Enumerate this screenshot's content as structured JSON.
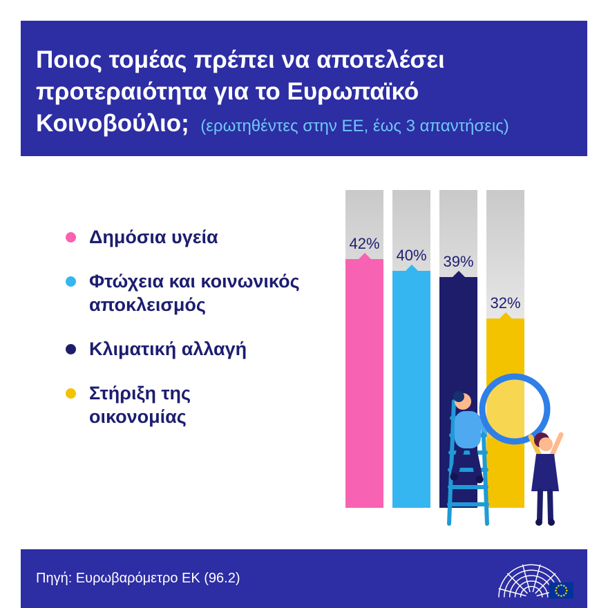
{
  "colors": {
    "band": "#2D2DA4",
    "text_navy": "#1D1D70",
    "subtitle_cyan": "#6FC9F3",
    "pink": "#F862B2",
    "cyan": "#35B6F0",
    "navy": "#1D1D6B",
    "yellow": "#F4C300",
    "eu_flag_blue": "#003399",
    "eu_star_yellow": "#FFCC00"
  },
  "header": {
    "title_lines": [
      "Ποιος τομέας πρέπει να αποτελέσει",
      "προτεραιότητα για το Ευρωπαϊκό",
      "Κοινοβούλιο;"
    ],
    "subtitle": "(ερωτηθέντες στην ΕΕ, έως 3 απαντήσεις)"
  },
  "legend": {
    "items": [
      {
        "label": "Δημόσια υγεία",
        "color": "#F862B2"
      },
      {
        "label": "Φτώχεια και κοινωνικός\nαποκλεισμός",
        "color": "#35B6F0"
      },
      {
        "label": "Κλιματική αλλαγή",
        "color": "#1D1D6B"
      },
      {
        "label": "Στήριξη της\nοικονομίας",
        "color": "#F4C300"
      }
    ]
  },
  "chart_data": {
    "type": "bar",
    "title": "Ποιος τομέας πρέπει να αποτελέσει προτεραιότητα για το Ευρωπαϊκό Κοινοβούλιο;",
    "subtitle": "(ερωτηθέντες στην ΕΕ, έως 3 απαντήσεις)",
    "categories": [
      "Δημόσια υγεία",
      "Φτώχεια και κοινωνικός αποκλεισμός",
      "Κλιματική αλλαγή",
      "Στήριξη της οικονομίας"
    ],
    "values": [
      42,
      40,
      39,
      32
    ],
    "value_labels": [
      "42%",
      "40%",
      "39%",
      "32%"
    ],
    "colors": [
      "#F862B2",
      "#35B6F0",
      "#1D1D6B",
      "#F4C300"
    ],
    "unit": "%",
    "ylim": [
      0,
      54
    ],
    "grid": false,
    "legend_position": "left",
    "orientation": "vertical"
  },
  "footer": {
    "source": "Πηγή: Ευρωβαρόμετρο ΕΚ (96.2)"
  }
}
